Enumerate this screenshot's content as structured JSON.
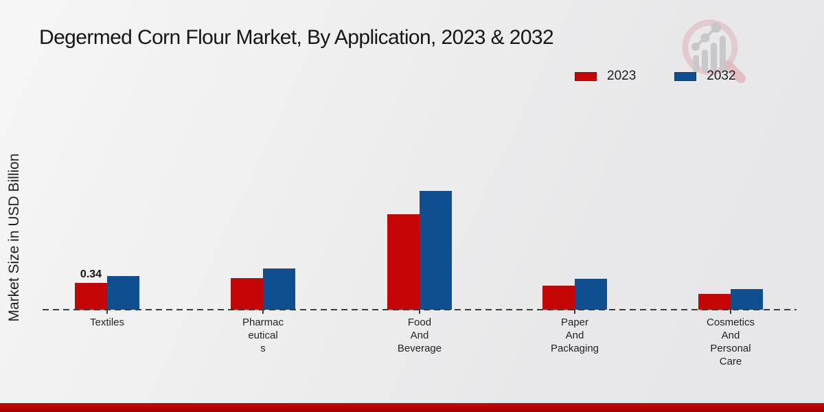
{
  "chart_data": {
    "type": "bar",
    "title": "Degermed Corn Flour Market, By Application, 2023 & 2032",
    "ylabel": "Market Size in USD Billion",
    "xlabel": "",
    "categories": [
      "Textiles",
      "Pharmaceuticals",
      "Food And Beverage",
      "Paper And Packaging",
      "Cosmetics And Personal Care"
    ],
    "category_label_lines": [
      [
        "Textiles"
      ],
      [
        "Pharmac",
        "eutical",
        "s"
      ],
      [
        "Food",
        "And",
        "Beverage"
      ],
      [
        "Paper",
        "And",
        "Packaging"
      ],
      [
        "Cosmetics",
        "And",
        "Personal",
        "Care"
      ]
    ],
    "series": [
      {
        "name": "2023",
        "color": "#c60606",
        "values": [
          0.34,
          0.4,
          1.2,
          0.3,
          0.2
        ]
      },
      {
        "name": "2032",
        "color": "#0f4f8f",
        "values": [
          0.42,
          0.52,
          1.5,
          0.39,
          0.26
        ]
      }
    ],
    "annotations": [
      {
        "series_index": 0,
        "category_index": 0,
        "text": "0.34"
      }
    ],
    "legend_position": "top-right",
    "grid": "off",
    "axis_style": "dashed-zero-line-only",
    "ylim": [
      0,
      1.6
    ],
    "units": "USD Billion"
  },
  "branding": {
    "logo": "magnifier-bar-chart-logo",
    "accent_color": "#c00303"
  }
}
